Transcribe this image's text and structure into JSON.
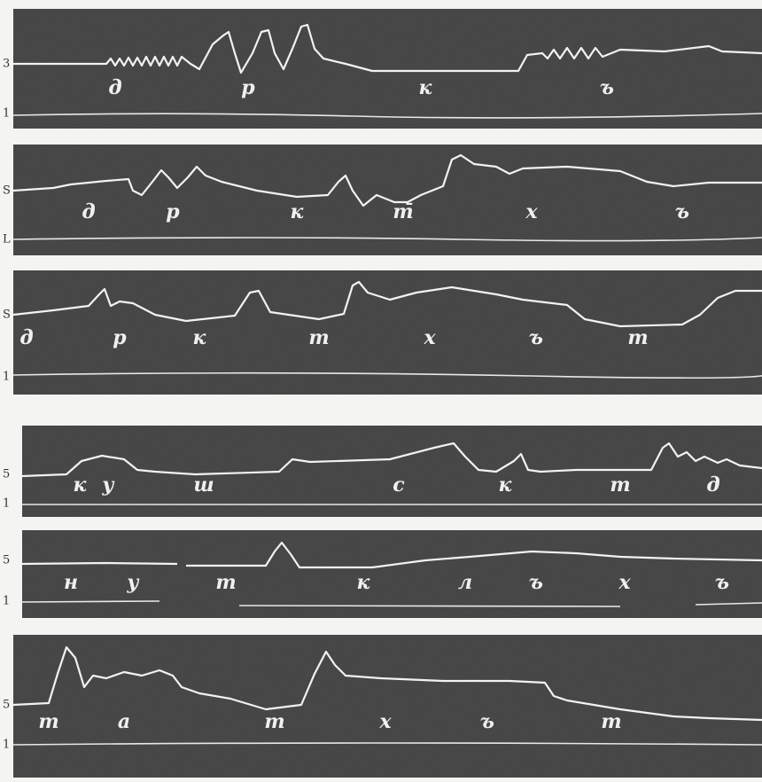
{
  "panels": [
    {
      "top_label": "3",
      "bottom_label": "1",
      "phonemes": [
        "д",
        "р",
        "к",
        "ъ"
      ]
    },
    {
      "top_label": "S",
      "bottom_label": "L",
      "phonemes": [
        "д",
        "р",
        "к",
        "т̄",
        "х",
        "ъ"
      ]
    },
    {
      "top_label": "S",
      "bottom_label": "1",
      "phonemes": [
        "д",
        "р",
        "к",
        "т",
        "х",
        "ъ",
        "т"
      ]
    },
    {
      "top_label": "5",
      "bottom_label": "1",
      "phonemes": [
        "к",
        "у",
        "ш",
        "с",
        "к",
        "т",
        "д"
      ]
    },
    {
      "top_label": "5",
      "bottom_label": "1",
      "phonemes": [
        "н",
        "у",
        "т",
        "к",
        "л",
        "ъ",
        "х",
        "ъ"
      ]
    },
    {
      "top_label": "5",
      "bottom_label": "1",
      "phonemes": [
        "т",
        "а",
        "т",
        "х",
        "ъ",
        "т"
      ]
    }
  ]
}
